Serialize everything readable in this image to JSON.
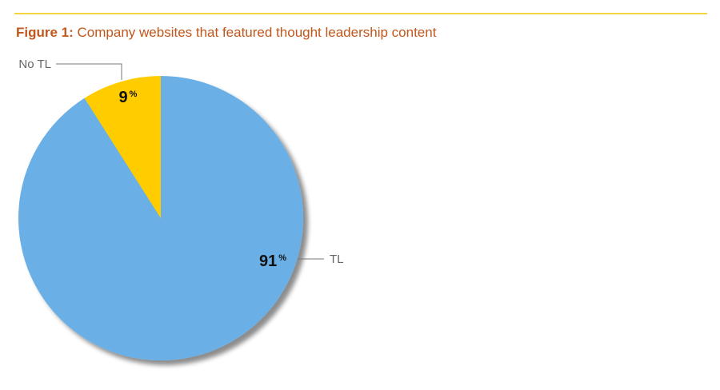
{
  "chart_data": {
    "type": "pie",
    "figure_label": "Figure 1:",
    "title": "Company websites that featured thought leadership content",
    "categories": [
      "TL",
      "No TL"
    ],
    "values": [
      91,
      9
    ],
    "value_labels": [
      "91%",
      "9%"
    ],
    "colors": [
      "#6ab0e6",
      "#ffcc00"
    ]
  }
}
